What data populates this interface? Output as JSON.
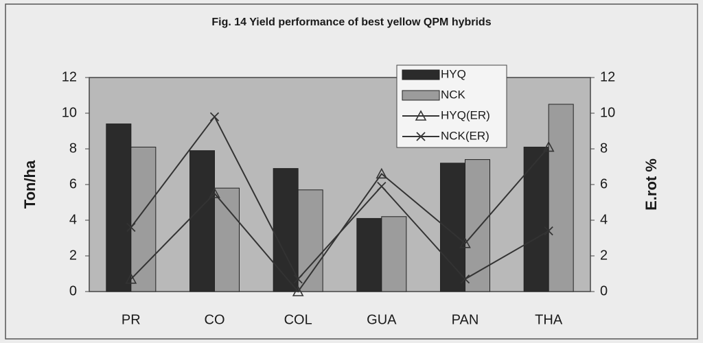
{
  "chart_data": {
    "type": "bar",
    "title": "Fig. 14 Yield performance of best yellow QPM hybrids",
    "ylabel": "Ton/ha",
    "y2label": "E.rot %",
    "categories": [
      "PR",
      "CO",
      "COL",
      "GUA",
      "PAN",
      "THA"
    ],
    "series": [
      {
        "name": "HYQ",
        "color": "#2b2b2b",
        "values": [
          9.4,
          7.9,
          6.9,
          4.1,
          7.2,
          8.1
        ]
      },
      {
        "name": "NCK",
        "color": "#9c9c9c",
        "values": [
          8.1,
          5.8,
          5.7,
          4.2,
          7.4,
          10.5
        ]
      },
      {
        "name": "HYQ(ER)",
        "color": "#333333",
        "axis": "y2",
        "marker": "triangle",
        "values": [
          0.7,
          5.5,
          0,
          6.6,
          2.7,
          8.1
        ]
      },
      {
        "name": "NCK(ER)",
        "color": "#333333",
        "axis": "y2",
        "marker": "x",
        "values": [
          3.6,
          9.8,
          0.7,
          5.9,
          0.7,
          3.4
        ]
      }
    ],
    "ylim": [
      0,
      12
    ],
    "yticks": [
      0,
      2,
      4,
      6,
      8,
      10,
      12
    ],
    "y2lim": [
      0,
      12
    ],
    "y2ticks": [
      0,
      2,
      4,
      6,
      8,
      10,
      12
    ],
    "legend": "top-right"
  }
}
